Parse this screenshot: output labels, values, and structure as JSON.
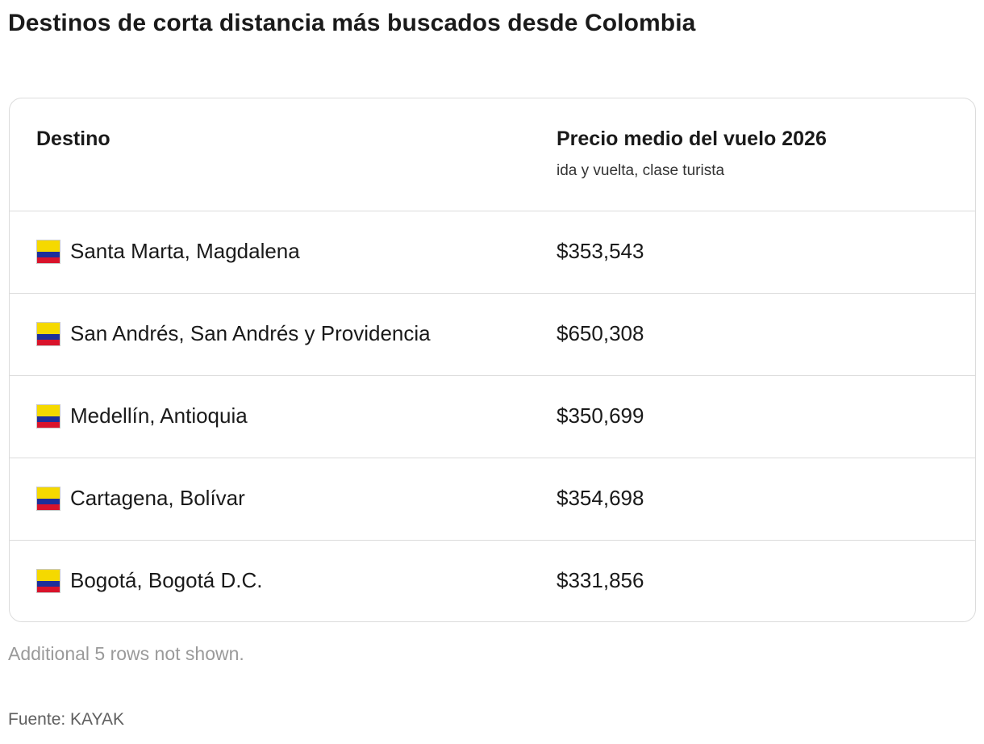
{
  "title": "Destinos de corta distancia más buscados desde Colombia",
  "table": {
    "headers": {
      "destination": "Destino",
      "price": "Precio medio del vuelo 2026",
      "price_sub": "ida y vuelta, clase turista"
    },
    "rows": [
      {
        "flag": "colombia-flag-icon",
        "destination": "Santa Marta, Magdalena",
        "price": "$353,543"
      },
      {
        "flag": "colombia-flag-icon",
        "destination": "San Andrés, San Andrés y Providencia",
        "price": "$650,308"
      },
      {
        "flag": "colombia-flag-icon",
        "destination": "Medellín, Antioquia",
        "price": "$350,699"
      },
      {
        "flag": "colombia-flag-icon",
        "destination": "Cartagena, Bolívar",
        "price": "$354,698"
      },
      {
        "flag": "colombia-flag-icon",
        "destination": "Bogotá, Bogotá D.C.",
        "price": "$331,856"
      }
    ]
  },
  "footnote": "Additional 5 rows not shown.",
  "source": "Fuente: KAYAK",
  "colors": {
    "flag_yellow": "#f5d900",
    "flag_blue": "#1d2f9a",
    "flag_red": "#d9132b",
    "border": "#dcdcdc",
    "muted_text": "#9a9a9a"
  }
}
